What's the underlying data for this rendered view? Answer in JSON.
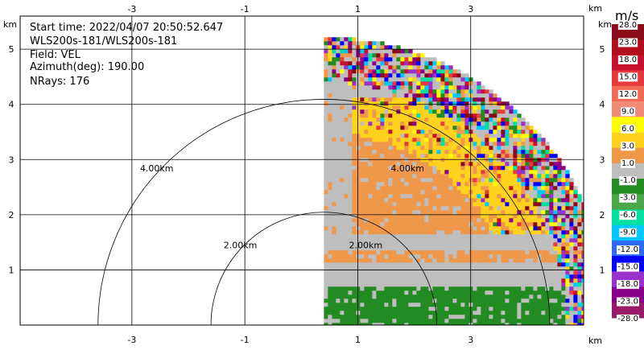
{
  "info": {
    "start_time": "Start time: 2022/04/07 20:50:52.647",
    "site": "WLS200s-181/WLS200s-181",
    "field": "Field: VEL",
    "azimuth": "Azimuth(deg): 190.00",
    "nrays": "NRays: 176"
  },
  "chart_data": {
    "type": "heatmap",
    "title": "",
    "x_unit": "km",
    "y_unit": "km",
    "xlim": [
      -4.98,
      5.0
    ],
    "ylim": [
      0,
      5.6
    ],
    "x_ticks": [
      "-3",
      "-1",
      "1",
      "3"
    ],
    "y_ticks": [
      "1",
      "2",
      "3",
      "4",
      "5"
    ],
    "x_tick_values": [
      -3,
      -1,
      1,
      3
    ],
    "y_tick_values": [
      1,
      2,
      3,
      4,
      5
    ],
    "grid": true,
    "range_rings": [
      {
        "radius_km": 2.0,
        "label": "2.00km"
      },
      {
        "radius_km": 4.0,
        "label": "4.00km"
      }
    ],
    "sector": {
      "az_start_deg": 0,
      "az_end_deg": 90,
      "max_range_km": 5.1,
      "origin_km": [
        0.4,
        0.0
      ]
    },
    "colorbar": {
      "unit": "m/s",
      "labels": [
        "28.0",
        "23.0",
        "18.0",
        "15.0",
        "12.0",
        "9.0",
        "6.0",
        "3.0",
        "1.0",
        "-1.0",
        "-3.0",
        "-6.0",
        "-9.0",
        "-12.0",
        "-15.0",
        "-18.0",
        "-23.0",
        "-28.0"
      ],
      "colors": [
        "#8b0a1a",
        "#b30d1e",
        "#c8102e",
        "#e8393c",
        "#f06a55",
        "#f28b78",
        "#ffff00",
        "#ffd21e",
        "#f0984a",
        "#bebebe",
        "#228b22",
        "#4aa84a",
        "#00e0a0",
        "#00c8ff",
        "#2d6cf0",
        "#0000ff",
        "#9932cc",
        "#8b008b",
        "#9b1b6b"
      ]
    }
  }
}
